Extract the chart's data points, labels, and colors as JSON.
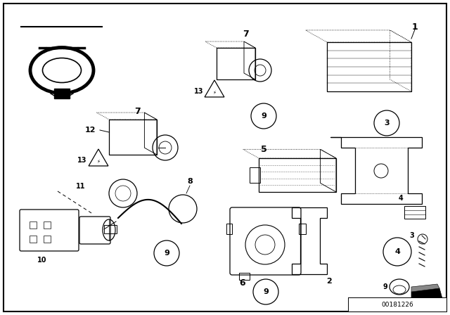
{
  "bg_color": "#ffffff",
  "diagram_id": "00181226",
  "fig_width": 6.4,
  "fig_height": 4.48,
  "dpi": 100
}
